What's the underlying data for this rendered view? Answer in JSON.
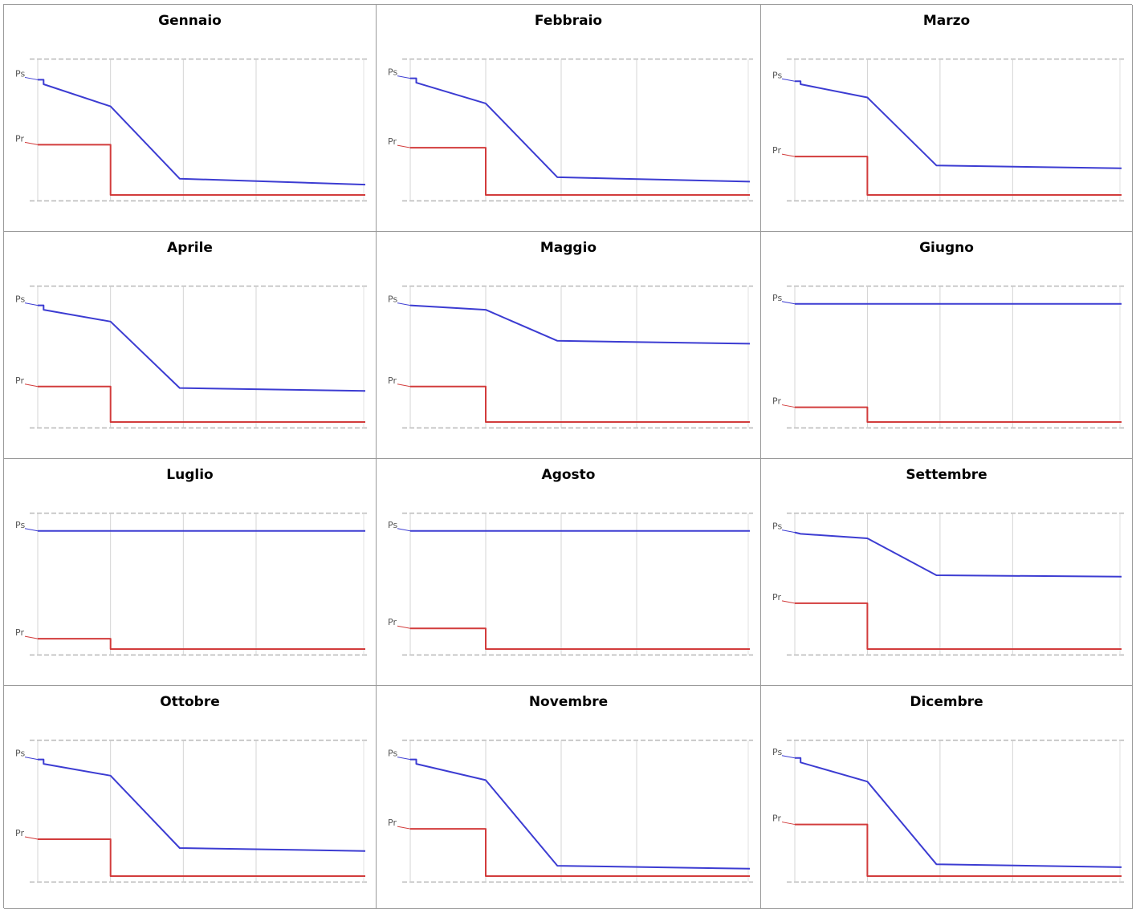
{
  "chart_data": [
    {
      "type": "line",
      "title": "Gennaio",
      "ytick_labels": [
        "Ps",
        "Pr"
      ],
      "ylim": [
        0,
        100
      ],
      "x_phases": [
        0,
        1,
        2,
        3
      ],
      "series": [
        {
          "label": "Ps",
          "color": "#3c3cd2",
          "x": [
            0,
            0.08,
            0.08,
            1,
            1.95,
            4.5
          ],
          "y": [
            84,
            84,
            81,
            66,
            17,
            13
          ]
        },
        {
          "label": "Pr",
          "color": "#d23c3c",
          "x": [
            0,
            1,
            1,
            4.5
          ],
          "y": [
            40,
            40,
            6,
            6
          ]
        }
      ]
    },
    {
      "type": "line",
      "title": "Febbraio",
      "ytick_labels": [
        "Ps",
        "Pr"
      ],
      "ylim": [
        0,
        100
      ],
      "x_phases": [
        0,
        1,
        2,
        3
      ],
      "series": [
        {
          "label": "Ps",
          "color": "#3c3cd2",
          "x": [
            0,
            0.08,
            0.08,
            1,
            1.95,
            4.5
          ],
          "y": [
            85,
            85,
            82,
            68,
            18,
            15
          ]
        },
        {
          "label": "Pr",
          "color": "#d23c3c",
          "x": [
            0,
            1,
            1,
            4.5
          ],
          "y": [
            38,
            38,
            6,
            6
          ]
        }
      ]
    },
    {
      "type": "line",
      "title": "Marzo",
      "ytick_labels": [
        "Ps",
        "Pr"
      ],
      "ylim": [
        0,
        100
      ],
      "x_phases": [
        0,
        1,
        2,
        3
      ],
      "series": [
        {
          "label": "Ps",
          "color": "#3c3cd2",
          "x": [
            0,
            0.08,
            0.08,
            1,
            1.95,
            4.5
          ],
          "y": [
            83,
            83,
            81,
            72,
            26,
            24
          ]
        },
        {
          "label": "Pr",
          "color": "#d23c3c",
          "x": [
            0,
            1,
            1,
            4.5
          ],
          "y": [
            32,
            32,
            6,
            6
          ]
        }
      ]
    },
    {
      "type": "line",
      "title": "Aprile",
      "ytick_labels": [
        "Ps",
        "Pr"
      ],
      "ylim": [
        0,
        100
      ],
      "x_phases": [
        0,
        1,
        2,
        3
      ],
      "series": [
        {
          "label": "Ps",
          "color": "#3c3cd2",
          "x": [
            0,
            0.08,
            0.08,
            1,
            1.95,
            4.5
          ],
          "y": [
            85,
            85,
            82,
            74,
            29,
            27
          ]
        },
        {
          "label": "Pr",
          "color": "#d23c3c",
          "x": [
            0,
            1,
            1,
            4.5
          ],
          "y": [
            30,
            30,
            6,
            6
          ]
        }
      ]
    },
    {
      "type": "line",
      "title": "Maggio",
      "ytick_labels": [
        "Ps",
        "Pr"
      ],
      "ylim": [
        0,
        100
      ],
      "x_phases": [
        0,
        1,
        2,
        3
      ],
      "series": [
        {
          "label": "Ps",
          "color": "#3c3cd2",
          "x": [
            0,
            1,
            1.95,
            4.5
          ],
          "y": [
            85,
            82,
            61,
            59
          ]
        },
        {
          "label": "Pr",
          "color": "#d23c3c",
          "x": [
            0,
            1,
            1,
            4.5
          ],
          "y": [
            30,
            30,
            6,
            6
          ]
        }
      ]
    },
    {
      "type": "line",
      "title": "Giugno",
      "ytick_labels": [
        "Ps",
        "Pr"
      ],
      "ylim": [
        0,
        100
      ],
      "x_phases": [
        0,
        1,
        2,
        3
      ],
      "series": [
        {
          "label": "Ps",
          "color": "#3c3cd2",
          "x": [
            0,
            4.5
          ],
          "y": [
            86,
            86
          ]
        },
        {
          "label": "Pr",
          "color": "#d23c3c",
          "x": [
            0,
            1,
            1,
            4.5
          ],
          "y": [
            16,
            16,
            6,
            6
          ]
        }
      ]
    },
    {
      "type": "line",
      "title": "Luglio",
      "ytick_labels": [
        "Ps",
        "Pr"
      ],
      "ylim": [
        0,
        100
      ],
      "x_phases": [
        0,
        1,
        2,
        3
      ],
      "series": [
        {
          "label": "Ps",
          "color": "#3c3cd2",
          "x": [
            0,
            4.5
          ],
          "y": [
            86,
            86
          ]
        },
        {
          "label": "Pr",
          "color": "#d23c3c",
          "x": [
            0,
            1,
            1,
            4.5
          ],
          "y": [
            13,
            13,
            6,
            6
          ]
        }
      ]
    },
    {
      "type": "line",
      "title": "Agosto",
      "ytick_labels": [
        "Ps",
        "Pr"
      ],
      "ylim": [
        0,
        100
      ],
      "x_phases": [
        0,
        1,
        2,
        3
      ],
      "series": [
        {
          "label": "Ps",
          "color": "#3c3cd2",
          "x": [
            0,
            4.5
          ],
          "y": [
            86,
            86
          ]
        },
        {
          "label": "Pr",
          "color": "#d23c3c",
          "x": [
            0,
            1,
            1,
            4.5
          ],
          "y": [
            20,
            20,
            6,
            6
          ]
        }
      ]
    },
    {
      "type": "line",
      "title": "Settembre",
      "ytick_labels": [
        "Ps",
        "Pr"
      ],
      "ylim": [
        0,
        100
      ],
      "x_phases": [
        0,
        1,
        2,
        3
      ],
      "series": [
        {
          "label": "Ps",
          "color": "#3c3cd2",
          "x": [
            0,
            0.08,
            1,
            1.95,
            4.5
          ],
          "y": [
            85,
            84,
            81,
            56,
            55
          ]
        },
        {
          "label": "Pr",
          "color": "#d23c3c",
          "x": [
            0,
            1,
            1,
            4.5
          ],
          "y": [
            37,
            37,
            6,
            6
          ]
        }
      ]
    },
    {
      "type": "line",
      "title": "Ottobre",
      "ytick_labels": [
        "Ps",
        "Pr"
      ],
      "ylim": [
        0,
        100
      ],
      "x_phases": [
        0,
        1,
        2,
        3
      ],
      "series": [
        {
          "label": "Ps",
          "color": "#3c3cd2",
          "x": [
            0,
            0.08,
            0.08,
            1,
            1.95,
            4.5
          ],
          "y": [
            85,
            85,
            82,
            74,
            25,
            23
          ]
        },
        {
          "label": "Pr",
          "color": "#d23c3c",
          "x": [
            0,
            1,
            1,
            4.5
          ],
          "y": [
            31,
            31,
            6,
            6
          ]
        }
      ]
    },
    {
      "type": "line",
      "title": "Novembre",
      "ytick_labels": [
        "Ps",
        "Pr"
      ],
      "ylim": [
        0,
        100
      ],
      "x_phases": [
        0,
        1,
        2,
        3
      ],
      "series": [
        {
          "label": "Ps",
          "color": "#3c3cd2",
          "x": [
            0,
            0.08,
            0.08,
            1,
            1.95,
            4.5
          ],
          "y": [
            85,
            85,
            82,
            71,
            13,
            11
          ]
        },
        {
          "label": "Pr",
          "color": "#d23c3c",
          "x": [
            0,
            1,
            1,
            4.5
          ],
          "y": [
            38,
            38,
            6,
            6
          ]
        }
      ]
    },
    {
      "type": "line",
      "title": "Dicembre",
      "ytick_labels": [
        "Ps",
        "Pr"
      ],
      "ylim": [
        0,
        100
      ],
      "x_phases": [
        0,
        1,
        2,
        3
      ],
      "series": [
        {
          "label": "Ps",
          "color": "#3c3cd2",
          "x": [
            0,
            0.08,
            0.08,
            1,
            1.95,
            4.5
          ],
          "y": [
            86,
            86,
            83,
            70,
            14,
            12
          ]
        },
        {
          "label": "Pr",
          "color": "#d23c3c",
          "x": [
            0,
            1,
            1,
            4.5
          ],
          "y": [
            41,
            41,
            6,
            6
          ]
        }
      ]
    }
  ]
}
